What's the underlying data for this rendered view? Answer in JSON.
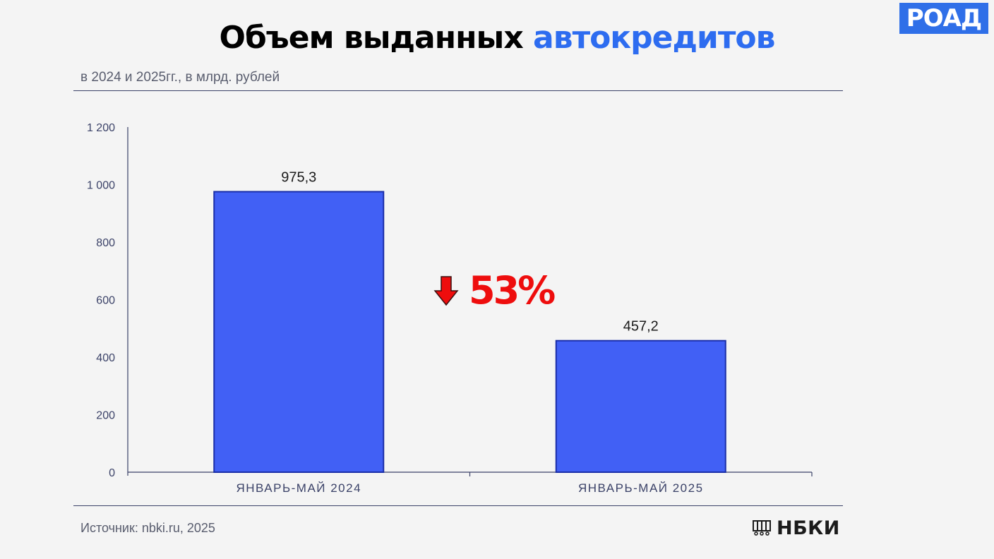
{
  "header": {
    "title_main": "Объем выданных",
    "title_accent": "автокредитов",
    "logo_text": "РОАД",
    "subtitle": "в 2024 и 2025гг., в млрд. рублей"
  },
  "footer": {
    "source": "Источник: nbki.ru, 2025",
    "brand": "НБКИ"
  },
  "colors": {
    "bar": "#4160f5",
    "bar_border": "#1a2ea8",
    "accent": "#2d6cf0",
    "change": "#ee0d0d"
  },
  "chart_data": {
    "type": "bar",
    "title": "Объем выданных автокредитов",
    "subtitle": "в 2024 и 2025гг., в млрд. рублей",
    "categories": [
      "ЯНВАРЬ-МАЙ 2024",
      "ЯНВАРЬ-МАЙ 2025"
    ],
    "values": [
      975.3,
      457.2
    ],
    "value_labels": [
      "975,3",
      "457,2"
    ],
    "ylim": [
      0,
      1200
    ],
    "yticks": [
      0,
      200,
      400,
      600,
      800,
      1000,
      1200
    ],
    "ytick_labels": [
      "0",
      "200",
      "400",
      "600",
      "800",
      "1 000",
      "1 200"
    ],
    "xlabel": "",
    "ylabel": "",
    "grid": false,
    "annotation": {
      "text": "53%",
      "icon": "arrow-down-icon",
      "meaning": "decrease"
    }
  }
}
